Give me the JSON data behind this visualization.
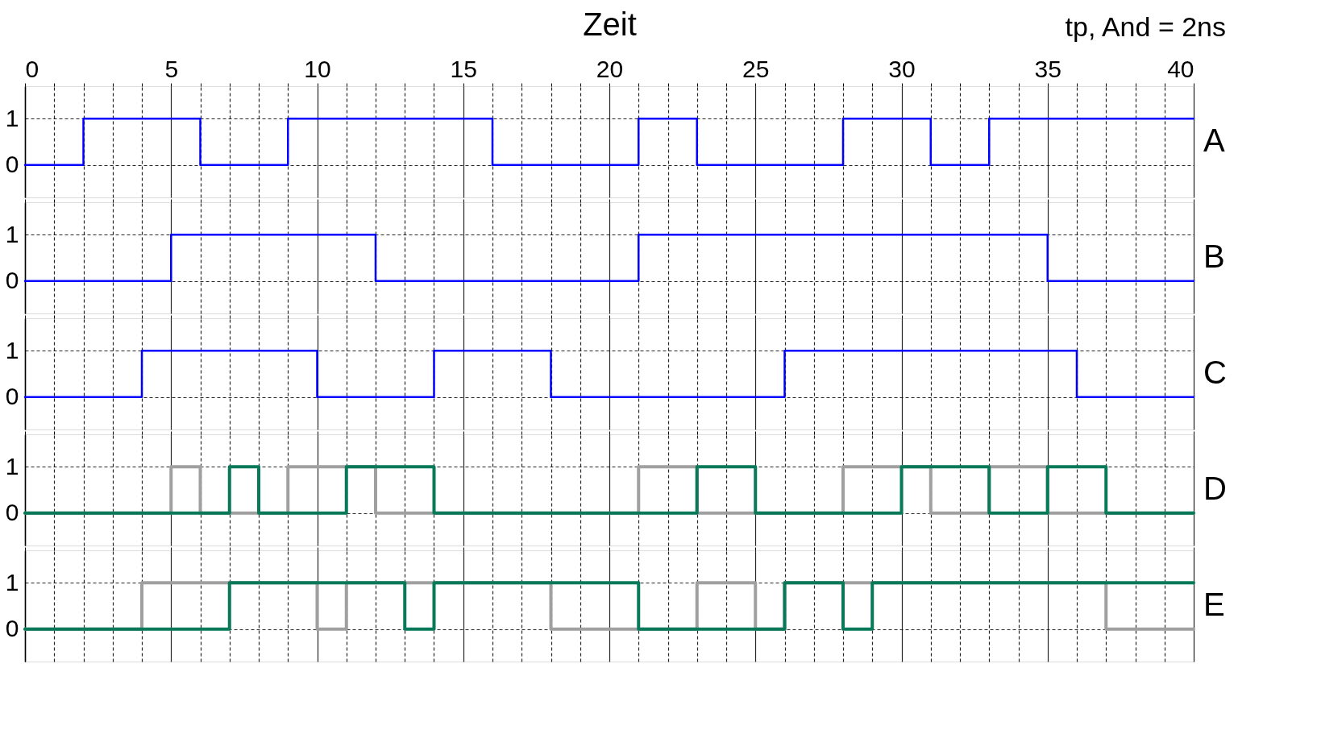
{
  "chart_data": [
    {
      "type": "step",
      "xlabel": "Zeit",
      "annotations": [
        "tp, And = 2ns"
      ],
      "xlim": [
        0,
        40
      ],
      "ylim": [
        -0.7,
        1.7
      ],
      "yticks": [
        0,
        1
      ],
      "grid": true,
      "xticks": [
        0,
        {
          "value": 1,
          "label": null
        },
        {
          "value": 2,
          "label": null
        },
        {
          "value": 3,
          "label": null
        },
        {
          "value": 4,
          "label": null
        },
        5,
        {
          "value": 6,
          "label": null
        },
        {
          "value": 7,
          "label": null
        },
        {
          "value": 8,
          "label": null
        },
        {
          "value": 9,
          "label": null
        },
        10,
        {
          "value": 11,
          "label": null
        },
        {
          "value": 12,
          "label": null
        },
        {
          "value": 13,
          "label": null
        },
        {
          "value": 14,
          "label": null
        },
        15,
        {
          "value": 16,
          "label": null
        },
        {
          "value": 17,
          "label": null
        },
        {
          "value": 18,
          "label": null
        },
        {
          "value": 19,
          "label": null
        },
        20,
        {
          "value": 21,
          "label": null
        },
        {
          "value": 22,
          "label": null
        },
        {
          "value": 23,
          "label": null
        },
        {
          "value": 24,
          "label": null
        },
        25,
        {
          "value": 26,
          "label": null
        },
        {
          "value": 27,
          "label": null
        },
        {
          "value": 28,
          "label": null
        },
        {
          "value": 29,
          "label": null
        },
        30,
        {
          "value": 31,
          "label": null
        },
        {
          "value": 32,
          "label": null
        },
        {
          "value": 33,
          "label": null
        },
        {
          "value": 34,
          "label": null
        },
        35,
        {
          "value": 36,
          "label": null
        },
        {
          "value": 37,
          "label": null
        },
        {
          "value": 38,
          "label": null
        },
        {
          "value": 39,
          "label": null
        },
        40
      ],
      "series": [
        {
          "name": "A",
          "color": "#0000ff",
          "x": [
            0,
            2,
            6,
            9,
            16,
            21,
            23,
            28,
            31,
            33,
            40
          ],
          "values": [
            0,
            1,
            0,
            1,
            0,
            1,
            0,
            1,
            0,
            1,
            1
          ]
        }
      ]
    },
    {
      "type": "step",
      "tick_labels": "y",
      "xlim": [
        0,
        40
      ],
      "ylim": [
        -0.7,
        1.7
      ],
      "yticks": [
        0,
        1
      ],
      "grid": true,
      "xticks": [
        0,
        {
          "value": 1,
          "label": null
        },
        {
          "value": 2,
          "label": null
        },
        {
          "value": 3,
          "label": null
        },
        {
          "value": 4,
          "label": null
        },
        5,
        {
          "value": 6,
          "label": null
        },
        {
          "value": 7,
          "label": null
        },
        {
          "value": 8,
          "label": null
        },
        {
          "value": 9,
          "label": null
        },
        10,
        {
          "value": 11,
          "label": null
        },
        {
          "value": 12,
          "label": null
        },
        {
          "value": 13,
          "label": null
        },
        {
          "value": 14,
          "label": null
        },
        15,
        {
          "value": 16,
          "label": null
        },
        {
          "value": 17,
          "label": null
        },
        {
          "value": 18,
          "label": null
        },
        {
          "value": 19,
          "label": null
        },
        20,
        {
          "value": 21,
          "label": null
        },
        {
          "value": 22,
          "label": null
        },
        {
          "value": 23,
          "label": null
        },
        {
          "value": 24,
          "label": null
        },
        25,
        {
          "value": 26,
          "label": null
        },
        {
          "value": 27,
          "label": null
        },
        {
          "value": 28,
          "label": null
        },
        {
          "value": 29,
          "label": null
        },
        30,
        {
          "value": 31,
          "label": null
        },
        {
          "value": 32,
          "label": null
        },
        {
          "value": 33,
          "label": null
        },
        {
          "value": 34,
          "label": null
        },
        35,
        {
          "value": 36,
          "label": null
        },
        {
          "value": 37,
          "label": null
        },
        {
          "value": 38,
          "label": null
        },
        {
          "value": 39,
          "label": null
        },
        40
      ],
      "series": [
        {
          "name": "B",
          "color": "#0000ff",
          "x": [
            0,
            5,
            12,
            21,
            35,
            40
          ],
          "values": [
            0,
            1,
            0,
            1,
            0,
            0
          ]
        }
      ]
    },
    {
      "type": "step",
      "tick_labels": "y",
      "xlim": [
        0,
        40
      ],
      "ylim": [
        -0.7,
        1.7
      ],
      "yticks": [
        0,
        1
      ],
      "grid": true,
      "xticks": [
        0,
        {
          "value": 1,
          "label": null
        },
        {
          "value": 2,
          "label": null
        },
        {
          "value": 3,
          "label": null
        },
        {
          "value": 4,
          "label": null
        },
        5,
        {
          "value": 6,
          "label": null
        },
        {
          "value": 7,
          "label": null
        },
        {
          "value": 8,
          "label": null
        },
        {
          "value": 9,
          "label": null
        },
        10,
        {
          "value": 11,
          "label": null
        },
        {
          "value": 12,
          "label": null
        },
        {
          "value": 13,
          "label": null
        },
        {
          "value": 14,
          "label": null
        },
        15,
        {
          "value": 16,
          "label": null
        },
        {
          "value": 17,
          "label": null
        },
        {
          "value": 18,
          "label": null
        },
        {
          "value": 19,
          "label": null
        },
        20,
        {
          "value": 21,
          "label": null
        },
        {
          "value": 22,
          "label": null
        },
        {
          "value": 23,
          "label": null
        },
        {
          "value": 24,
          "label": null
        },
        25,
        {
          "value": 26,
          "label": null
        },
        {
          "value": 27,
          "label": null
        },
        {
          "value": 28,
          "label": null
        },
        {
          "value": 29,
          "label": null
        },
        30,
        {
          "value": 31,
          "label": null
        },
        {
          "value": 32,
          "label": null
        },
        {
          "value": 33,
          "label": null
        },
        {
          "value": 34,
          "label": null
        },
        35,
        {
          "value": 36,
          "label": null
        },
        {
          "value": 37,
          "label": null
        },
        {
          "value": 38,
          "label": null
        },
        {
          "value": 39,
          "label": null
        },
        40
      ],
      "series": [
        {
          "name": "C",
          "color": "#0000ff",
          "x": [
            0,
            4,
            10,
            14,
            18,
            26,
            36,
            40
          ],
          "values": [
            0,
            1,
            0,
            1,
            0,
            1,
            0,
            0
          ]
        }
      ]
    },
    {
      "type": "step",
      "tick_labels": "y",
      "xlim": [
        0,
        40
      ],
      "ylim": [
        -0.7,
        1.7
      ],
      "yticks": [
        0,
        1
      ],
      "grid": true,
      "xticks": [
        0,
        {
          "value": 1,
          "label": null
        },
        {
          "value": 2,
          "label": null
        },
        {
          "value": 3,
          "label": null
        },
        {
          "value": 4,
          "label": null
        },
        5,
        {
          "value": 6,
          "label": null
        },
        {
          "value": 7,
          "label": null
        },
        {
          "value": 8,
          "label": null
        },
        {
          "value": 9,
          "label": null
        },
        10,
        {
          "value": 11,
          "label": null
        },
        {
          "value": 12,
          "label": null
        },
        {
          "value": 13,
          "label": null
        },
        {
          "value": 14,
          "label": null
        },
        15,
        {
          "value": 16,
          "label": null
        },
        {
          "value": 17,
          "label": null
        },
        {
          "value": 18,
          "label": null
        },
        {
          "value": 19,
          "label": null
        },
        20,
        {
          "value": 21,
          "label": null
        },
        {
          "value": 22,
          "label": null
        },
        {
          "value": 23,
          "label": null
        },
        {
          "value": 24,
          "label": null
        },
        25,
        {
          "value": 26,
          "label": null
        },
        {
          "value": 27,
          "label": null
        },
        {
          "value": 28,
          "label": null
        },
        {
          "value": 29,
          "label": null
        },
        30,
        {
          "value": 31,
          "label": null
        },
        {
          "value": 32,
          "label": null
        },
        {
          "value": 33,
          "label": null
        },
        {
          "value": 34,
          "label": null
        },
        35,
        {
          "value": 36,
          "label": null
        },
        {
          "value": 37,
          "label": null
        },
        {
          "value": 38,
          "label": null
        },
        {
          "value": 39,
          "label": null
        },
        40
      ],
      "series": [
        {
          "color": "#a0a0a0",
          "x": [
            0,
            5,
            6,
            9,
            12,
            21,
            23,
            28,
            31,
            33,
            35,
            40
          ],
          "values": [
            0,
            1,
            0,
            1,
            0,
            1,
            0,
            1,
            0,
            1,
            0,
            0
          ]
        },
        {
          "name": "D",
          "color": "#087a5a",
          "x": [
            0,
            7,
            8,
            11,
            14,
            23,
            25,
            30,
            33,
            35,
            37,
            40
          ],
          "values": [
            0,
            1,
            0,
            1,
            0,
            1,
            0,
            1,
            0,
            1,
            0,
            0
          ]
        }
      ]
    },
    {
      "type": "step",
      "tick_labels": "y",
      "xlim": [
        0,
        40
      ],
      "ylim": [
        -0.7,
        1.7
      ],
      "yticks": [
        0,
        1
      ],
      "grid": true,
      "xticks": [
        0,
        {
          "value": 1,
          "label": null
        },
        {
          "value": 2,
          "label": null
        },
        {
          "value": 3,
          "label": null
        },
        {
          "value": 4,
          "label": null
        },
        5,
        {
          "value": 6,
          "label": null
        },
        {
          "value": 7,
          "label": null
        },
        {
          "value": 8,
          "label": null
        },
        {
          "value": 9,
          "label": null
        },
        10,
        {
          "value": 11,
          "label": null
        },
        {
          "value": 12,
          "label": null
        },
        {
          "value": 13,
          "label": null
        },
        {
          "value": 14,
          "label": null
        },
        15,
        {
          "value": 16,
          "label": null
        },
        {
          "value": 17,
          "label": null
        },
        {
          "value": 18,
          "label": null
        },
        {
          "value": 19,
          "label": null
        },
        20,
        {
          "value": 21,
          "label": null
        },
        {
          "value": 22,
          "label": null
        },
        {
          "value": 23,
          "label": null
        },
        {
          "value": 24,
          "label": null
        },
        25,
        {
          "value": 26,
          "label": null
        },
        {
          "value": 27,
          "label": null
        },
        {
          "value": 28,
          "label": null
        },
        {
          "value": 29,
          "label": null
        },
        30,
        {
          "value": 31,
          "label": null
        },
        {
          "value": 32,
          "label": null
        },
        {
          "value": 33,
          "label": null
        },
        {
          "value": 34,
          "label": null
        },
        35,
        {
          "value": 36,
          "label": null
        },
        {
          "value": 37,
          "label": null
        },
        {
          "value": 38,
          "label": null
        },
        {
          "value": 39,
          "label": null
        },
        40
      ],
      "series": [
        {
          "color": "#a0a0a0",
          "x": [
            0,
            4,
            10,
            11,
            18,
            23,
            25,
            26,
            37,
            40
          ],
          "values": [
            0,
            1,
            0,
            1,
            0,
            1,
            0,
            1,
            0,
            0
          ]
        },
        {
          "name": "E",
          "color": "#087a5a",
          "x": [
            0,
            7,
            13,
            14,
            21,
            26,
            28,
            29,
            40
          ],
          "values": [
            0,
            1,
            0,
            1,
            0,
            1,
            0,
            1,
            1
          ]
        }
      ]
    }
  ]
}
